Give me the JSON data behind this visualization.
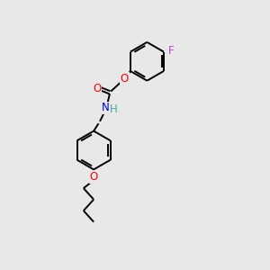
{
  "background_color": "#e8e8e8",
  "bond_color": "#000000",
  "atom_colors": {
    "O": "#ff0000",
    "N": "#0000cd",
    "F": "#cc44cc",
    "H": "#44aaaa",
    "C": "#000000"
  },
  "figsize": [
    3.0,
    3.0
  ],
  "dpi": 100,
  "bond_lw": 1.4,
  "font_size": 8.5
}
